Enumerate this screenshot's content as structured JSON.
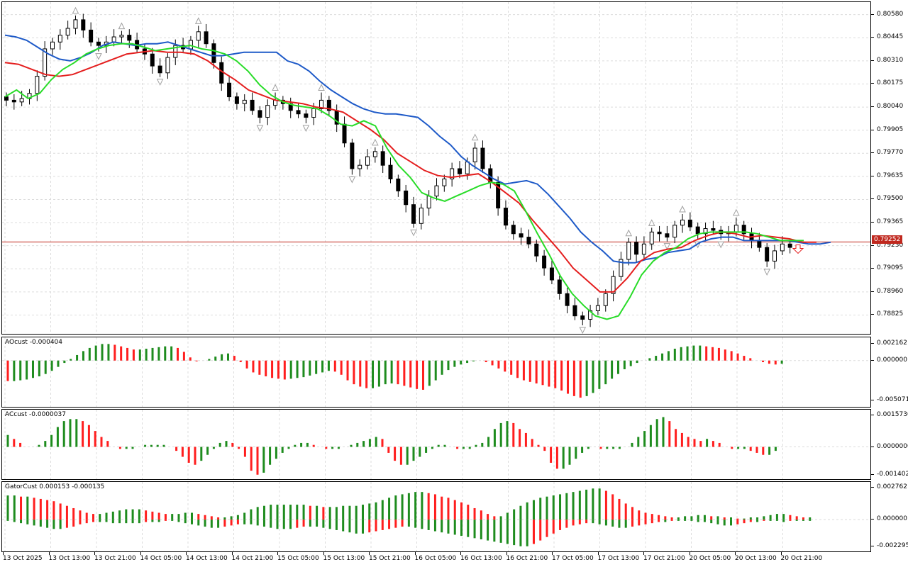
{
  "chart_data": [
    {
      "type": "candlestick",
      "title": "",
      "current_price": "0.79252",
      "y_ticks": [
        "0.80580",
        "0.80445",
        "0.80310",
        "0.80175",
        "0.80040",
        "0.79905",
        "0.79770",
        "0.79635",
        "0.79500",
        "0.79365",
        "0.79230",
        "0.79095",
        "0.78960",
        "0.78825"
      ],
      "ylim": [
        0.7874,
        0.8062
      ],
      "x_ticks": [
        "13 Oct 2025",
        "13 Oct 13:00",
        "13 Oct 21:00",
        "14 Oct 05:00",
        "14 Oct 13:00",
        "14 Oct 21:00",
        "15 Oct 05:00",
        "15 Oct 13:00",
        "15 Oct 21:00",
        "16 Oct 05:00",
        "16 Oct 13:00",
        "16 Oct 21:00",
        "17 Oct 05:00",
        "17 Oct 13:00",
        "17 Oct 21:00",
        "20 Oct 05:00",
        "20 Oct 13:00",
        "20 Oct 21:00"
      ],
      "closes": [
        0.8008,
        0.8007,
        0.8009,
        0.8012,
        0.8022,
        0.8038,
        0.8042,
        0.8046,
        0.805,
        0.8055,
        0.8049,
        0.8042,
        0.804,
        0.8042,
        0.8045,
        0.8046,
        0.8043,
        0.8038,
        0.8035,
        0.8028,
        0.8024,
        0.8033,
        0.804,
        0.8038,
        0.8043,
        0.8048,
        0.8041,
        0.803,
        0.8018,
        0.801,
        0.8006,
        0.8008,
        0.8002,
        0.7998,
        0.8005,
        0.8008,
        0.8006,
        0.8002,
        0.8,
        0.7998,
        0.8003,
        0.8008,
        0.8002,
        0.7994,
        0.7983,
        0.7968,
        0.797,
        0.7975,
        0.7978,
        0.797,
        0.7962,
        0.7955,
        0.7947,
        0.7936,
        0.7945,
        0.7952,
        0.7958,
        0.7962,
        0.7968,
        0.7965,
        0.7972,
        0.798,
        0.7968,
        0.796,
        0.7945,
        0.7935,
        0.793,
        0.7928,
        0.7924,
        0.7917,
        0.791,
        0.7903,
        0.7895,
        0.7888,
        0.7882,
        0.788,
        0.7885,
        0.7888,
        0.7895,
        0.7905,
        0.7915,
        0.7925,
        0.7918,
        0.7924,
        0.7931,
        0.793,
        0.7928,
        0.7935,
        0.7938,
        0.7934,
        0.793,
        0.7933,
        0.7932,
        0.793,
        0.7931,
        0.7935,
        0.793,
        0.7926,
        0.7922,
        0.7914,
        0.792,
        0.7924,
        0.7922
      ],
      "series": [
        {
          "name": "",
          "color": "#1e5ac8",
          "values": [
            0.8046,
            0.8045,
            0.8043,
            0.8039,
            0.8035,
            0.8032,
            0.8031,
            0.8033,
            0.8036,
            0.804,
            0.8042,
            0.8041,
            0.804,
            0.8041,
            0.8041,
            0.8042,
            0.804,
            0.8038,
            0.8036,
            0.8034,
            0.8034,
            0.8035,
            0.8036,
            0.8036,
            0.8036,
            0.8036,
            0.8031,
            0.8029,
            0.8025,
            0.8019,
            0.8014,
            0.801,
            0.8006,
            0.8003,
            0.8001,
            0.8,
            0.8,
            0.7999,
            0.7998,
            0.7993,
            0.7987,
            0.7982,
            0.7975,
            0.797,
            0.7966,
            0.7962,
            0.7959,
            0.796,
            0.7961,
            0.7959,
            0.7953,
            0.7946,
            0.7939,
            0.7931,
            0.7925,
            0.792,
            0.7914,
            0.7913,
            0.7913,
            0.7915,
            0.7916,
            0.7919,
            0.792,
            0.7921,
            0.7925,
            0.7927,
            0.7928,
            0.7928,
            0.7926,
            0.7926,
            0.7926,
            0.7926,
            0.7926,
            0.7925,
            0.7924,
            0.7924,
            0.7925
          ]
        },
        {
          "name": "",
          "color": "#e41e1e",
          "values": [
            0.803,
            0.8029,
            0.8026,
            0.8023,
            0.8022,
            0.8023,
            0.8026,
            0.8029,
            0.8032,
            0.8035,
            0.8036,
            0.8037,
            0.8036,
            0.8036,
            0.8035,
            0.8031,
            0.8025,
            0.802,
            0.8014,
            0.8011,
            0.8008,
            0.8007,
            0.8006,
            0.8004,
            0.8003,
            0.8001,
            0.7996,
            0.7991,
            0.7985,
            0.7977,
            0.7972,
            0.7967,
            0.7964,
            0.7963,
            0.7964,
            0.7965,
            0.796,
            0.7954,
            0.7948,
            0.7938,
            0.7929,
            0.792,
            0.791,
            0.7903,
            0.7896,
            0.7896,
            0.7904,
            0.7914,
            0.7919,
            0.7921,
            0.7922,
            0.7926,
            0.7929,
            0.7931,
            0.793,
            0.7928,
            0.7929,
            0.7928,
            0.7927,
            0.7925,
            0.7925
          ]
        },
        {
          "name": "",
          "color": "#28dc28",
          "values": [
            0.801,
            0.8014,
            0.8009,
            0.8012,
            0.802,
            0.8026,
            0.803,
            0.8035,
            0.8038,
            0.804,
            0.8041,
            0.8041,
            0.8039,
            0.8037,
            0.8038,
            0.8039,
            0.804,
            0.8038,
            0.8037,
            0.8035,
            0.8031,
            0.8025,
            0.8017,
            0.8011,
            0.8007,
            0.8005,
            0.8004,
            0.8003,
            0.7999,
            0.7994,
            0.7993,
            0.7996,
            0.7993,
            0.798,
            0.797,
            0.7963,
            0.7954,
            0.7951,
            0.7949,
            0.7952,
            0.7955,
            0.7958,
            0.796,
            0.7959,
            0.7955,
            0.7943,
            0.793,
            0.7918,
            0.7905,
            0.7895,
            0.7888,
            0.7882,
            0.788,
            0.7882,
            0.7893,
            0.7906,
            0.7914,
            0.7919,
            0.7922,
            0.7927,
            0.793,
            0.7931,
            0.7931,
            0.7931,
            0.7931,
            0.793,
            0.7928,
            0.7926,
            0.7926,
            0.7926
          ]
        }
      ]
    },
    {
      "type": "bar",
      "title": "AOcust -0.000404",
      "y_ticks": [
        "0.002162",
        "0.000000",
        "-0.005071"
      ],
      "ylim": [
        -0.0055,
        0.0024
      ],
      "values": [
        -0.0026,
        -0.0026,
        -0.0025,
        -0.0024,
        -0.0022,
        -0.002,
        -0.0017,
        -0.0013,
        -0.0008,
        -0.0003,
        0.0002,
        0.0007,
        0.0012,
        0.0016,
        0.0019,
        0.0021,
        0.0021,
        0.002,
        0.0018,
        0.0016,
        0.0014,
        0.0014,
        0.0015,
        0.0016,
        0.0017,
        0.0018,
        0.0018,
        0.0016,
        0.0011,
        0.0004,
        -0.0001,
        0.0,
        0.0002,
        0.0005,
        0.0008,
        0.0009,
        0.0006,
        -0.0002,
        -0.001,
        -0.0015,
        -0.0018,
        -0.002,
        -0.0022,
        -0.0023,
        -0.0024,
        -0.0023,
        -0.0022,
        -0.0021,
        -0.0019,
        -0.0017,
        -0.0015,
        -0.0013,
        -0.0014,
        -0.0018,
        -0.0025,
        -0.003,
        -0.0033,
        -0.0035,
        -0.0035,
        -0.0033,
        -0.003,
        -0.0029,
        -0.003,
        -0.0032,
        -0.0034,
        -0.0036,
        -0.0037,
        -0.0032,
        -0.0025,
        -0.0018,
        -0.0012,
        -0.0008,
        -0.0005,
        -0.0003,
        -0.0001,
        0.0,
        -0.0002,
        -0.0006,
        -0.001,
        -0.0014,
        -0.0018,
        -0.0022,
        -0.0025,
        -0.0027,
        -0.0029,
        -0.0031,
        -0.0033,
        -0.0035,
        -0.0038,
        -0.0042,
        -0.0045,
        -0.0047,
        -0.0045,
        -0.0041,
        -0.0036,
        -0.003,
        -0.0023,
        -0.0017,
        -0.0011,
        -0.0007,
        -0.0003,
        0.0,
        0.0003,
        0.0006,
        0.0009,
        0.0012,
        0.0015,
        0.0017,
        0.0018,
        0.0019,
        0.0019,
        0.0018,
        0.0017,
        0.0016,
        0.0014,
        0.0012,
        0.0009,
        0.0006,
        0.0003,
        0.0,
        -0.0002,
        -0.0004,
        -0.0005,
        -0.0004
      ]
    },
    {
      "type": "bar",
      "title": "ACcust -0.0000037",
      "y_ticks": [
        "0.0015730",
        "0.0000000",
        "-0.0014028"
      ],
      "ylim": [
        -0.00148,
        0.00166
      ],
      "values": [
        0.0006,
        0.0004,
        0.0002,
        0.0,
        0.0,
        0.0001,
        0.0003,
        0.0006,
        0.001,
        0.0013,
        0.0014,
        0.0014,
        0.0013,
        0.0011,
        0.0008,
        0.0005,
        0.0003,
        0.0,
        -0.0001,
        -0.0001,
        -0.0001,
        0.0,
        0.0001,
        0.0001,
        0.0001,
        0.0001,
        0.0,
        -0.0002,
        -0.0005,
        -0.0008,
        -0.0009,
        -0.0007,
        -0.0004,
        -0.0001,
        0.0002,
        0.0003,
        0.0002,
        -0.0001,
        -0.0005,
        -0.0012,
        -0.0014,
        -0.0013,
        -0.0009,
        -0.0006,
        -0.0003,
        -0.0001,
        0.0001,
        0.0002,
        0.0002,
        0.0001,
        0.0,
        -0.0001,
        -0.0001,
        -0.0001,
        0.0,
        0.0001,
        0.0002,
        0.0003,
        0.0004,
        0.0005,
        0.0004,
        -0.0003,
        -0.0007,
        -0.0009,
        -0.0009,
        -0.0007,
        -0.0005,
        -0.0003,
        -0.0001,
        0.0001,
        0.0001,
        0.0,
        -0.0001,
        -0.0001,
        -0.0001,
        0.0001,
        0.0002,
        0.0005,
        0.0009,
        0.0012,
        0.0013,
        0.0012,
        0.0009,
        0.0007,
        0.0004,
        0.0001,
        -0.0002,
        -0.0008,
        -0.0011,
        -0.0011,
        -0.0009,
        -0.0006,
        -0.0003,
        -0.0001,
        0.0,
        -0.0001,
        -0.0001,
        -0.0001,
        -0.0001,
        0.0,
        0.0002,
        0.0005,
        0.0008,
        0.0011,
        0.0014,
        0.0015,
        0.0013,
        0.0009,
        0.0007,
        0.0005,
        0.0004,
        0.0003,
        0.0004,
        0.0003,
        0.0002,
        0.0,
        -0.0001,
        -0.0001,
        -0.0001,
        -0.0002,
        -0.0003,
        -0.0004,
        -0.0004,
        -0.0002,
        0.0
      ]
    },
    {
      "type": "bar",
      "title": "GatorCust 0.000153 -0.000135",
      "y_ticks": [
        "0.002762",
        "0.000000",
        "-0.002295"
      ],
      "ylim": [
        -0.0025,
        0.0029
      ],
      "upper": [
        0.0021,
        0.0021,
        0.002,
        0.002,
        0.0019,
        0.0018,
        0.0017,
        0.0016,
        0.0014,
        0.0012,
        0.001,
        0.0008,
        0.0006,
        0.0005,
        0.0005,
        0.0006,
        0.0007,
        0.0008,
        0.0009,
        0.0009,
        0.0009,
        0.0008,
        0.0007,
        0.0006,
        0.0005,
        0.0005,
        0.0005,
        0.0006,
        0.0006,
        0.0005,
        0.0004,
        0.0003,
        0.0002,
        0.0002,
        0.0003,
        0.0004,
        0.0006,
        0.0009,
        0.0011,
        0.0012,
        0.0013,
        0.0013,
        0.0013,
        0.0013,
        0.0013,
        0.0013,
        0.0012,
        0.0012,
        0.0011,
        0.0011,
        0.0011,
        0.0012,
        0.0012,
        0.0012,
        0.0013,
        0.0014,
        0.0015,
        0.0017,
        0.0019,
        0.0021,
        0.0022,
        0.0023,
        0.0024,
        0.0024,
        0.0023,
        0.0022,
        0.002,
        0.0019,
        0.0017,
        0.0015,
        0.0013,
        0.001,
        0.0008,
        0.0005,
        0.0003,
        0.0003,
        0.0006,
        0.0009,
        0.0012,
        0.0015,
        0.0017,
        0.0019,
        0.002,
        0.0021,
        0.0022,
        0.0023,
        0.0024,
        0.0025,
        0.0026,
        0.0027,
        0.0027,
        0.0025,
        0.0022,
        0.0018,
        0.0014,
        0.0011,
        0.0008,
        0.0006,
        0.0005,
        0.0004,
        0.0003,
        0.0002,
        0.0002,
        0.0003,
        0.0003,
        0.0004,
        0.0004,
        0.0003,
        0.0003,
        0.0002,
        0.0002,
        0.0001,
        0.0001,
        0.0002,
        0.0002,
        0.0003,
        0.0004,
        0.0005,
        0.0005,
        0.0004,
        0.0003,
        0.0002,
        0.0002
      ],
      "lower": [
        -0.0001,
        -0.0002,
        -0.0003,
        -0.0004,
        -0.0005,
        -0.0006,
        -0.0007,
        -0.0008,
        -0.0008,
        -0.0007,
        -0.0006,
        -0.0004,
        -0.0003,
        -0.0002,
        -0.0002,
        -0.0002,
        -0.0003,
        -0.0003,
        -0.0003,
        -0.0003,
        -0.0003,
        -0.0002,
        -0.0002,
        -0.0002,
        -0.0001,
        -0.0001,
        -0.0002,
        -0.0003,
        -0.0004,
        -0.0005,
        -0.0006,
        -0.0007,
        -0.0007,
        -0.0006,
        -0.0005,
        -0.0004,
        -0.0004,
        -0.0004,
        -0.0005,
        -0.0006,
        -0.0007,
        -0.0008,
        -0.0008,
        -0.0008,
        -0.0007,
        -0.0006,
        -0.0006,
        -0.0006,
        -0.0007,
        -0.0008,
        -0.0009,
        -0.001,
        -0.0011,
        -0.0012,
        -0.0012,
        -0.0011,
        -0.001,
        -0.0009,
        -0.0008,
        -0.0007,
        -0.0006,
        -0.0006,
        -0.0007,
        -0.0008,
        -0.0009,
        -0.001,
        -0.0011,
        -0.0012,
        -0.0013,
        -0.0014,
        -0.0015,
        -0.0016,
        -0.0017,
        -0.0018,
        -0.0019,
        -0.002,
        -0.0021,
        -0.0022,
        -0.0023,
        -0.0023,
        -0.0021,
        -0.0018,
        -0.0015,
        -0.0012,
        -0.0009,
        -0.0007,
        -0.0005,
        -0.0004,
        -0.0003,
        -0.0003,
        -0.0004,
        -0.0005,
        -0.0006,
        -0.0007,
        -0.0007,
        -0.0006,
        -0.0005,
        -0.0004,
        -0.0003,
        -0.0002,
        -0.0002,
        -0.0001,
        -0.0001,
        -0.0001,
        -0.0001,
        -0.0002,
        -0.0002,
        -0.0003,
        -0.0004,
        -0.0005,
        -0.0005,
        -0.0004,
        -0.0003,
        -0.0002,
        -0.0002,
        -0.0001,
        -0.0001,
        -0.0001,
        -0.0002,
        -0.0001,
        -0.0001,
        -0.0001,
        -0.0001
      ]
    }
  ],
  "colors": {
    "up": "#1e8c1e",
    "down": "#ff1e1e",
    "candle_bull": "#ffffff",
    "candle_bear": "#000000",
    "price_line": "#c0281e",
    "grid": "#dcdcdc",
    "fractal": "#a0a0a0"
  }
}
